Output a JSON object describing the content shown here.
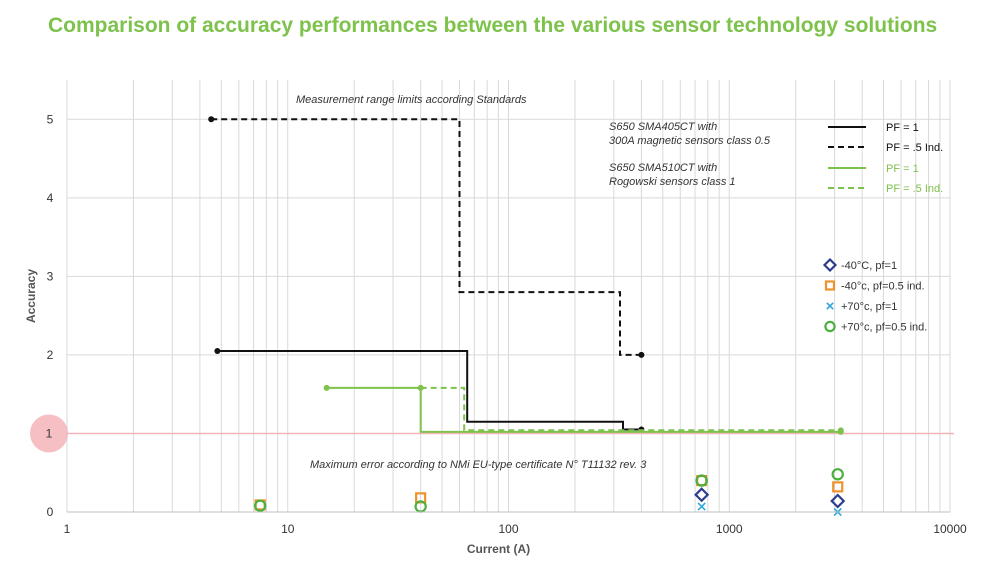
{
  "title": "Comparison of accuracy performances between the various sensor technology solutions",
  "colors": {
    "black": "#111111",
    "green": "#7dc24b",
    "title": "#7dc24b",
    "grid": "#d9d9d9",
    "reference": "#f2b4b8",
    "reference_marker": "#f2a9b0",
    "navy": "#2b3d8c",
    "orange": "#f0922b",
    "cyan": "#2ea8dc",
    "marker_green": "#4caf3f"
  },
  "chart_data": {
    "type": "line",
    "xscale": "log",
    "xlim": [
      1,
      10000
    ],
    "ylim": [
      0,
      5.5
    ],
    "xlabel": "Current (A)",
    "ylabel": "Accuracy",
    "xticks": [
      {
        "value": 1,
        "label": "1"
      },
      {
        "value": 10,
        "label": "10"
      },
      {
        "value": 100,
        "label": "100"
      },
      {
        "value": 1000,
        "label": "1000"
      },
      {
        "value": 10000,
        "label": "10000"
      }
    ],
    "yticks": [
      {
        "value": 0,
        "label": "0"
      },
      {
        "value": 1,
        "label": "1"
      },
      {
        "value": 2,
        "label": "2"
      },
      {
        "value": 3,
        "label": "3"
      },
      {
        "value": 4,
        "label": "4"
      },
      {
        "value": 5,
        "label": "5"
      }
    ],
    "grid": true,
    "reference_line": {
      "y": 1,
      "label": "1"
    },
    "series": [
      {
        "id": "black-pf1",
        "color": "black",
        "dash": "solid",
        "x": [
          4.8,
          65,
          65,
          330,
          330,
          400
        ],
        "y": [
          2.05,
          2.05,
          1.15,
          1.15,
          1.05,
          1.05
        ],
        "end_points": [
          [
            4.8,
            2.05
          ],
          [
            400,
            1.05
          ]
        ]
      },
      {
        "id": "black-pf05",
        "color": "black",
        "dash": "dashed",
        "x": [
          4.5,
          60,
          60,
          320,
          320,
          400
        ],
        "y": [
          5.0,
          5.0,
          2.8,
          2.8,
          2.0,
          2.0
        ],
        "end_points": [
          [
            4.5,
            5.0
          ],
          [
            400,
            2.0
          ]
        ]
      },
      {
        "id": "green-pf1",
        "color": "green",
        "dash": "solid",
        "x": [
          15,
          40,
          40,
          3200
        ],
        "y": [
          1.58,
          1.58,
          1.02,
          1.02
        ],
        "end_points": [
          [
            15,
            1.58
          ],
          [
            40,
            1.58
          ],
          [
            3200,
            1.02
          ]
        ]
      },
      {
        "id": "green-pf05",
        "color": "green",
        "dash": "dashed",
        "x": [
          40,
          63,
          63,
          3200
        ],
        "y": [
          1.58,
          1.58,
          1.04,
          1.04
        ],
        "end_points": [
          [
            3200,
            1.04
          ]
        ]
      }
    ],
    "markers": [
      {
        "x": 7.5,
        "y": 0.09,
        "shape": "square",
        "color": "orange"
      },
      {
        "x": 7.5,
        "y": 0.08,
        "shape": "circle",
        "color": "marker_green"
      },
      {
        "x": 40,
        "y": 0.18,
        "shape": "square",
        "color": "orange"
      },
      {
        "x": 40,
        "y": 0.07,
        "shape": "circle",
        "color": "marker_green"
      },
      {
        "x": 750,
        "y": 0.4,
        "shape": "square",
        "color": "orange"
      },
      {
        "x": 750,
        "y": 0.4,
        "shape": "circle",
        "color": "marker_green"
      },
      {
        "x": 750,
        "y": 0.22,
        "shape": "diamond",
        "color": "navy"
      },
      {
        "x": 750,
        "y": 0.07,
        "shape": "x",
        "color": "cyan"
      },
      {
        "x": 3100,
        "y": 0.48,
        "shape": "circle",
        "color": "marker_green"
      },
      {
        "x": 3100,
        "y": 0.32,
        "shape": "square",
        "color": "orange"
      },
      {
        "x": 3100,
        "y": 0.14,
        "shape": "diamond",
        "color": "navy"
      },
      {
        "x": 3100,
        "y": 0.0,
        "shape": "x",
        "color": "cyan"
      }
    ],
    "annotations": {
      "measurement_range": "Measurement range limits according Standards",
      "max_error": "Maximum error according to NMi EU-type certificate N° T11132 rev. 3"
    },
    "legend": {
      "placement": "top-right",
      "groups": [
        {
          "label_lines": [
            "S650 SMA405CT with",
            "300A magnetic sensors class 0.5"
          ],
          "color": "black",
          "entries": [
            {
              "dash": "solid",
              "label": "PF = 1"
            },
            {
              "dash": "dashed",
              "label": "PF = .5 Ind."
            }
          ]
        },
        {
          "label_lines": [
            "S650 SMA510CT with",
            "Rogowski sensors class 1"
          ],
          "color": "green",
          "entries": [
            {
              "dash": "solid",
              "label": "PF = 1"
            },
            {
              "dash": "dashed",
              "label": "PF = .5 Ind."
            }
          ]
        }
      ],
      "marker_entries": [
        {
          "shape": "diamond",
          "color": "navy",
          "label": "-40°C, pf=1"
        },
        {
          "shape": "square",
          "color": "orange",
          "label": "-40°c, pf=0.5 ind."
        },
        {
          "shape": "x",
          "color": "cyan",
          "label": "+70°c, pf=1"
        },
        {
          "shape": "circle",
          "color": "marker_green",
          "label": "+70°c, pf=0.5 ind."
        }
      ]
    }
  }
}
